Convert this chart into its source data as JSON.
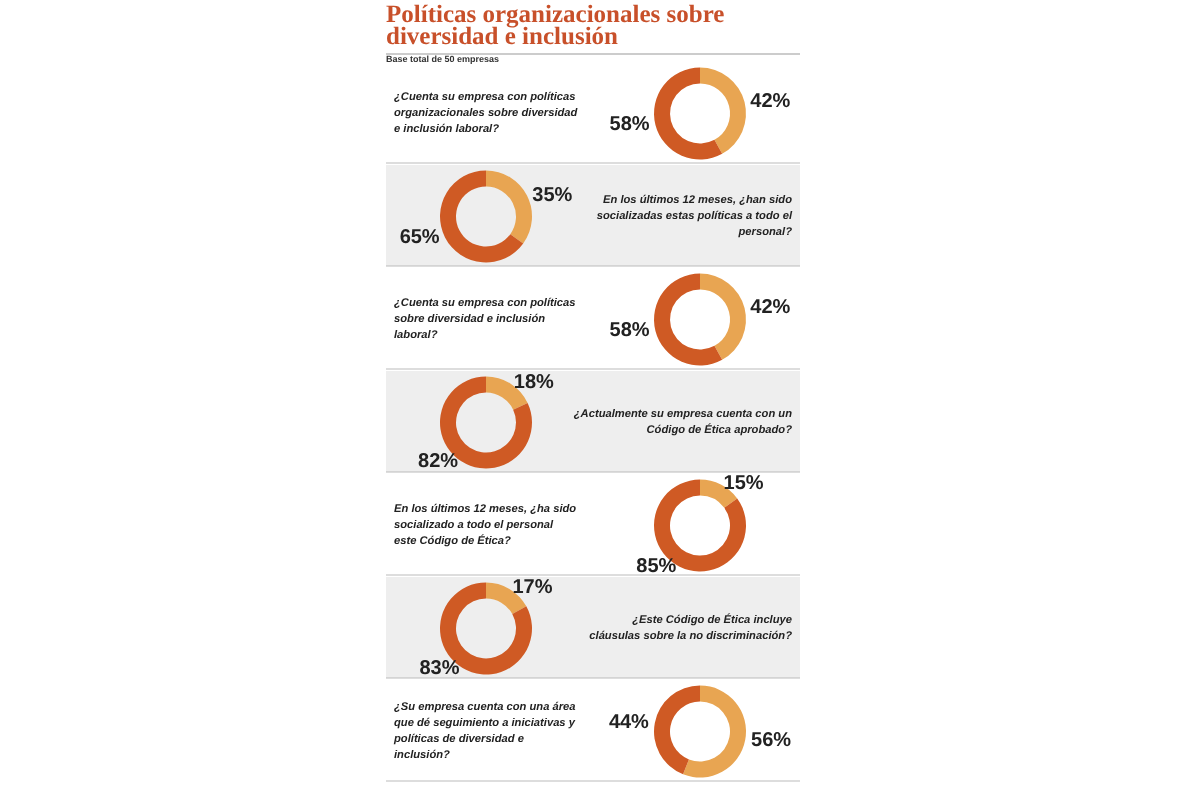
{
  "chart_data": [
    {
      "type": "other",
      "title": "Políticas organizacionales sobre diversidad e inclusión",
      "subtitle": "Base total de 50 empresas"
    },
    {
      "type": "donut",
      "title": "¿Cuenta su empresa con políticas organizacionales sobre diversidad e inclusión laboral?",
      "categories": [
        null,
        null
      ],
      "values": [
        42,
        58
      ],
      "colors": [
        "#e8a552",
        "#cf5a24"
      ],
      "value_labels": [
        "42%",
        "58%"
      ]
    },
    {
      "type": "donut",
      "title": "En los últimos 12 meses, ¿han sido socializadas estas políticas a todo el personal?",
      "categories": [
        null,
        null
      ],
      "values": [
        35,
        65
      ],
      "colors": [
        "#e8a552",
        "#cf5a24"
      ],
      "value_labels": [
        "35%",
        "65%"
      ]
    },
    {
      "type": "donut",
      "title": "¿Cuenta su empresa con políticas sobre diversidad e inclusión laboral?",
      "categories": [
        null,
        null
      ],
      "values": [
        42,
        58
      ],
      "colors": [
        "#e8a552",
        "#cf5a24"
      ],
      "value_labels": [
        "42%",
        "58%"
      ]
    },
    {
      "type": "donut",
      "title": "¿Actualmente su empresa cuenta con un Código de Ética aprobado?",
      "categories": [
        null,
        null
      ],
      "values": [
        18,
        82
      ],
      "colors": [
        "#e8a552",
        "#cf5a24"
      ],
      "value_labels": [
        "18%",
        "82%"
      ]
    },
    {
      "type": "donut",
      "title": "En los últimos 12 meses, ¿ha sido socializado a todo el personal este Código de Ética?",
      "categories": [
        null,
        null
      ],
      "values": [
        15,
        85
      ],
      "colors": [
        "#e8a552",
        "#cf5a24"
      ],
      "value_labels": [
        "15%",
        "85%"
      ]
    },
    {
      "type": "donut",
      "title": "¿Este Código de Ética incluye cláusulas sobre la no discriminación?",
      "categories": [
        null,
        null
      ],
      "values": [
        17,
        83
      ],
      "colors": [
        "#e8a552",
        "#cf5a24"
      ],
      "value_labels": [
        "17%",
        "83%"
      ]
    },
    {
      "type": "donut",
      "title": "¿Su empresa cuenta con una área que dé seguimiento a iniciativas y políticas de diversidad e inclusión?",
      "categories": [
        null,
        null
      ],
      "values": [
        56,
        44
      ],
      "colors": [
        "#e8a552",
        "#cf5a24"
      ],
      "value_labels": [
        "56%",
        "44%"
      ]
    }
  ]
}
